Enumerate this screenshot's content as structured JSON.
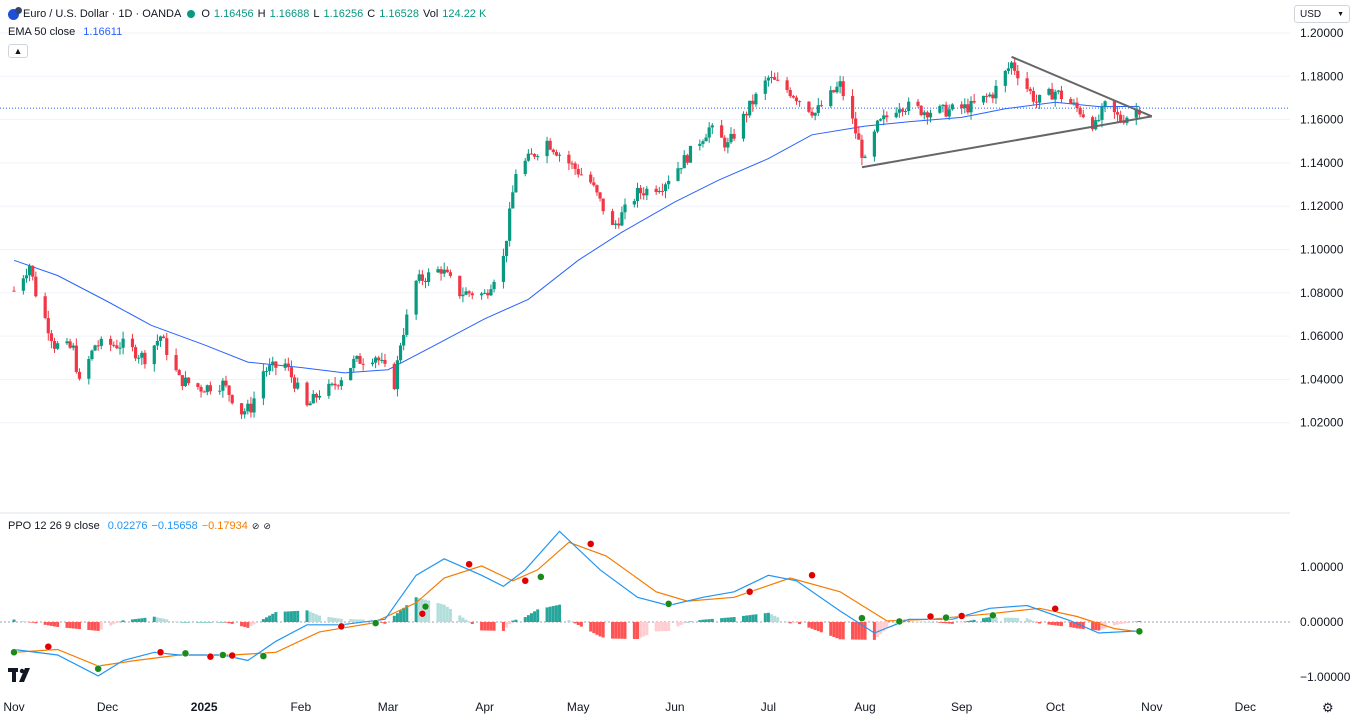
{
  "header": {
    "symbol": "Euro / U.S. Dollar · 1D · OANDA",
    "o_label": "O",
    "o_value": "1.16456",
    "h_label": "H",
    "h_value": "1.16688",
    "l_label": "L",
    "l_value": "1.16256",
    "c_label": "C",
    "c_value": "1.16528",
    "vol_label": "Vol",
    "vol_value": "124.22 K",
    "ema_label": "EMA 50 close",
    "ema_value": "1.16611",
    "currency": "USD",
    "icons": [
      "euro-dollar-flag-icon",
      "market-open-dot-icon",
      "chevron-up-icon",
      "chevron-down-icon"
    ]
  },
  "ppo_header": {
    "label": "PPO 12 26 9 close",
    "v1": "0.02276",
    "v2": "−0.15658",
    "v3": "−0.17934"
  },
  "colors": {
    "up": "#089981",
    "down": "#f23645",
    "ema": "#2962ff",
    "ppo": "#2196f3",
    "signal": "#f57c00",
    "hist_up_strong": "#26a69a",
    "hist_up_weak": "#b2dfdb",
    "hist_down_strong": "#ff5252",
    "hist_down_weak": "#ffcdd2",
    "trendline": "#666666",
    "price_line": "#2962ff"
  },
  "chart_data": [
    {
      "type": "candlestick",
      "title": "Euro / U.S. Dollar · 1D · OANDA",
      "ylim": [
        1.0,
        1.2033
      ],
      "y_ticks": [
        "1.20000",
        "1.18000",
        "1.16000",
        "1.14000",
        "1.12000",
        "1.10000",
        "1.08000",
        "1.06000",
        "1.04000",
        "1.02000"
      ],
      "y_tick_values": [
        1.2,
        1.18,
        1.16,
        1.14,
        1.12,
        1.1,
        1.08,
        1.06,
        1.04,
        1.02
      ],
      "x_ticks": [
        "Nov",
        "Dec",
        "2025",
        "Feb",
        "Mar",
        "Apr",
        "May",
        "Jun",
        "Jul",
        "Aug",
        "Sep",
        "Oct",
        "Nov",
        "Dec"
      ],
      "x_tick_dates": [
        "2024-11-01",
        "2024-12-01",
        "2025-01-01",
        "2025-02-01",
        "2025-03-01",
        "2025-04-01",
        "2025-05-01",
        "2025-06-01",
        "2025-07-01",
        "2025-08-01",
        "2025-09-01",
        "2025-10-01",
        "2025-11-01",
        "2025-12-01"
      ],
      "date_range": [
        "2024-11-01",
        "2025-12-15"
      ],
      "current_price_line": 1.16528,
      "ema_series": {
        "name": "EMA 50 close",
        "points": [
          [
            "2024-11-01",
            1.095
          ],
          [
            "2024-11-15",
            1.088
          ],
          [
            "2024-12-01",
            1.076
          ],
          [
            "2024-12-15",
            1.065
          ],
          [
            "2025-01-01",
            1.056
          ],
          [
            "2025-01-15",
            1.048
          ],
          [
            "2025-02-01",
            1.0455
          ],
          [
            "2025-02-15",
            1.043
          ],
          [
            "2025-03-01",
            1.0445
          ],
          [
            "2025-03-15",
            1.055
          ],
          [
            "2025-04-01",
            1.068
          ],
          [
            "2025-04-15",
            1.077
          ],
          [
            "2025-05-01",
            1.095
          ],
          [
            "2025-05-15",
            1.108
          ],
          [
            "2025-06-01",
            1.122
          ],
          [
            "2025-06-15",
            1.132
          ],
          [
            "2025-07-01",
            1.142
          ],
          [
            "2025-07-15",
            1.153
          ],
          [
            "2025-08-01",
            1.157
          ],
          [
            "2025-08-15",
            1.159
          ],
          [
            "2025-09-01",
            1.161
          ],
          [
            "2025-09-15",
            1.165
          ],
          [
            "2025-10-01",
            1.168
          ],
          [
            "2025-10-15",
            1.166
          ],
          [
            "2025-10-28",
            1.1661
          ]
        ]
      },
      "price_path": [
        [
          "2024-11-01",
          1.081
        ],
        [
          "2024-11-06",
          1.093
        ],
        [
          "2024-11-08",
          1.08
        ],
        [
          "2024-11-14",
          1.056
        ],
        [
          "2024-11-20",
          1.054
        ],
        [
          "2024-11-22",
          1.038
        ],
        [
          "2024-11-27",
          1.056
        ],
        [
          "2024-12-06",
          1.056
        ],
        [
          "2024-12-13",
          1.05
        ],
        [
          "2024-12-18",
          1.06
        ],
        [
          "2024-12-24",
          1.04
        ],
        [
          "2024-12-31",
          1.036
        ],
        [
          "2025-01-07",
          1.038
        ],
        [
          "2025-01-13",
          1.025
        ],
        [
          "2025-01-16",
          1.027
        ],
        [
          "2025-01-20",
          1.044
        ],
        [
          "2025-01-27",
          1.047
        ],
        [
          "2025-02-03",
          1.027
        ],
        [
          "2025-02-07",
          1.034
        ],
        [
          "2025-02-11",
          1.036
        ],
        [
          "2025-02-18",
          1.048
        ],
        [
          "2025-02-25",
          1.051
        ],
        [
          "2025-03-03",
          1.038
        ],
        [
          "2025-03-05",
          1.057
        ],
        [
          "2025-03-10",
          1.085
        ],
        [
          "2025-03-18",
          1.091
        ],
        [
          "2025-03-24",
          1.08
        ],
        [
          "2025-03-28",
          1.08
        ],
        [
          "2025-04-01",
          1.079
        ],
        [
          "2025-04-07",
          1.096
        ],
        [
          "2025-04-11",
          1.136
        ],
        [
          "2025-04-21",
          1.15
        ],
        [
          "2025-04-28",
          1.14
        ],
        [
          "2025-05-05",
          1.131
        ],
        [
          "2025-05-12",
          1.11
        ],
        [
          "2025-05-20",
          1.126
        ],
        [
          "2025-05-28",
          1.13
        ],
        [
          "2025-06-05",
          1.143
        ],
        [
          "2025-06-12",
          1.156
        ],
        [
          "2025-06-18",
          1.148
        ],
        [
          "2025-06-25",
          1.166
        ],
        [
          "2025-07-01",
          1.179
        ],
        [
          "2025-07-08",
          1.173
        ],
        [
          "2025-07-16",
          1.163
        ],
        [
          "2025-07-24",
          1.176
        ],
        [
          "2025-07-28",
          1.159
        ],
        [
          "2025-08-01",
          1.14
        ],
        [
          "2025-08-05",
          1.157
        ],
        [
          "2025-08-12",
          1.167
        ],
        [
          "2025-08-20",
          1.164
        ],
        [
          "2025-08-27",
          1.164
        ],
        [
          "2025-09-04",
          1.166
        ],
        [
          "2025-09-11",
          1.172
        ],
        [
          "2025-09-17",
          1.186
        ],
        [
          "2025-09-25",
          1.168
        ],
        [
          "2025-10-01",
          1.173
        ],
        [
          "2025-10-09",
          1.164
        ],
        [
          "2025-10-14",
          1.157
        ],
        [
          "2025-10-17",
          1.166
        ],
        [
          "2025-10-22",
          1.16
        ],
        [
          "2025-10-28",
          1.1653
        ]
      ],
      "trendlines": [
        {
          "from": [
            "2025-09-17",
            1.189
          ],
          "to": [
            "2025-11-01",
            1.1615
          ]
        },
        {
          "from": [
            "2025-07-31",
            1.138
          ],
          "to": [
            "2025-11-01",
            1.1615
          ]
        }
      ]
    },
    {
      "type": "line",
      "title": "PPO 12 26 9 close",
      "ylim": [
        -1.1,
        1.75
      ],
      "y_ticks": [
        "1.00000",
        "0.00000",
        "−1.00000"
      ],
      "y_tick_values": [
        1.0,
        0.0,
        -1.0
      ],
      "series": [
        {
          "name": "PPO",
          "points": [
            [
              "2024-11-01",
              -0.5
            ],
            [
              "2024-11-15",
              -0.6
            ],
            [
              "2024-11-28",
              -0.98
            ],
            [
              "2024-12-06",
              -0.7
            ],
            [
              "2024-12-16",
              -0.55
            ],
            [
              "2024-12-24",
              -0.6
            ],
            [
              "2025-01-07",
              -0.6
            ],
            [
              "2025-01-15",
              -0.7
            ],
            [
              "2025-01-24",
              -0.35
            ],
            [
              "2025-02-03",
              -0.05
            ],
            [
              "2025-02-14",
              -0.05
            ],
            [
              "2025-02-28",
              0.05
            ],
            [
              "2025-03-10",
              0.85
            ],
            [
              "2025-03-19",
              1.15
            ],
            [
              "2025-03-31",
              0.85
            ],
            [
              "2025-04-07",
              0.65
            ],
            [
              "2025-04-14",
              0.95
            ],
            [
              "2025-04-25",
              1.65
            ],
            [
              "2025-05-08",
              0.95
            ],
            [
              "2025-05-20",
              0.45
            ],
            [
              "2025-05-30",
              0.3
            ],
            [
              "2025-06-10",
              0.45
            ],
            [
              "2025-06-20",
              0.55
            ],
            [
              "2025-07-01",
              0.85
            ],
            [
              "2025-07-10",
              0.75
            ],
            [
              "2025-07-24",
              0.2
            ],
            [
              "2025-08-04",
              -0.2
            ],
            [
              "2025-08-15",
              0.05
            ],
            [
              "2025-08-29",
              0.05
            ],
            [
              "2025-09-10",
              0.25
            ],
            [
              "2025-09-22",
              0.3
            ],
            [
              "2025-10-06",
              0.02
            ],
            [
              "2025-10-15",
              -0.2
            ],
            [
              "2025-10-28",
              -0.16
            ]
          ]
        },
        {
          "name": "Signal",
          "points": [
            [
              "2024-11-01",
              -0.55
            ],
            [
              "2024-11-15",
              -0.5
            ],
            [
              "2024-11-28",
              -0.8
            ],
            [
              "2024-12-10",
              -0.7
            ],
            [
              "2024-12-24",
              -0.6
            ],
            [
              "2025-01-10",
              -0.6
            ],
            [
              "2025-01-24",
              -0.55
            ],
            [
              "2025-02-07",
              -0.18
            ],
            [
              "2025-02-24",
              -0.02
            ],
            [
              "2025-03-10",
              0.35
            ],
            [
              "2025-03-19",
              0.8
            ],
            [
              "2025-03-31",
              1.02
            ],
            [
              "2025-04-10",
              0.75
            ],
            [
              "2025-04-18",
              0.95
            ],
            [
              "2025-04-28",
              1.45
            ],
            [
              "2025-05-10",
              1.2
            ],
            [
              "2025-05-26",
              0.55
            ],
            [
              "2025-06-05",
              0.38
            ],
            [
              "2025-06-20",
              0.45
            ],
            [
              "2025-07-08",
              0.8
            ],
            [
              "2025-07-24",
              0.55
            ],
            [
              "2025-08-08",
              0.02
            ],
            [
              "2025-08-22",
              0.05
            ],
            [
              "2025-09-10",
              0.15
            ],
            [
              "2025-09-26",
              0.25
            ],
            [
              "2025-10-08",
              0.1
            ],
            [
              "2025-10-20",
              -0.12
            ],
            [
              "2025-10-28",
              -0.18
            ]
          ]
        }
      ],
      "crossover_markers": [
        [
          "2024-11-01",
          -0.55,
          "up"
        ],
        [
          "2024-11-12",
          -0.45,
          "down"
        ],
        [
          "2024-11-28",
          -0.85,
          "up"
        ],
        [
          "2024-12-18",
          -0.55,
          "down"
        ],
        [
          "2024-12-26",
          -0.57,
          "up"
        ],
        [
          "2025-01-03",
          -0.63,
          "down"
        ],
        [
          "2025-01-07",
          -0.6,
          "up"
        ],
        [
          "2025-01-10",
          -0.61,
          "down"
        ],
        [
          "2025-01-20",
          -0.62,
          "up"
        ],
        [
          "2025-02-14",
          -0.08,
          "down"
        ],
        [
          "2025-02-25",
          -0.02,
          "up"
        ],
        [
          "2025-03-12",
          0.15,
          "down"
        ],
        [
          "2025-03-13",
          0.28,
          "up"
        ],
        [
          "2025-03-27",
          1.05,
          "down"
        ],
        [
          "2025-04-14",
          0.75,
          "down"
        ],
        [
          "2025-04-19",
          0.82,
          "up"
        ],
        [
          "2025-05-05",
          1.42,
          "down"
        ],
        [
          "2025-05-30",
          0.33,
          "up"
        ],
        [
          "2025-06-25",
          0.55,
          "down"
        ],
        [
          "2025-07-15",
          0.85,
          "down"
        ],
        [
          "2025-07-31",
          0.07,
          "up"
        ],
        [
          "2025-08-12",
          0.01,
          "up"
        ],
        [
          "2025-08-22",
          0.1,
          "down"
        ],
        [
          "2025-08-27",
          0.08,
          "up"
        ],
        [
          "2025-09-01",
          0.11,
          "down"
        ],
        [
          "2025-09-11",
          0.12,
          "up"
        ],
        [
          "2025-10-01",
          0.24,
          "down"
        ],
        [
          "2025-10-28",
          -0.17,
          "up"
        ]
      ]
    }
  ]
}
